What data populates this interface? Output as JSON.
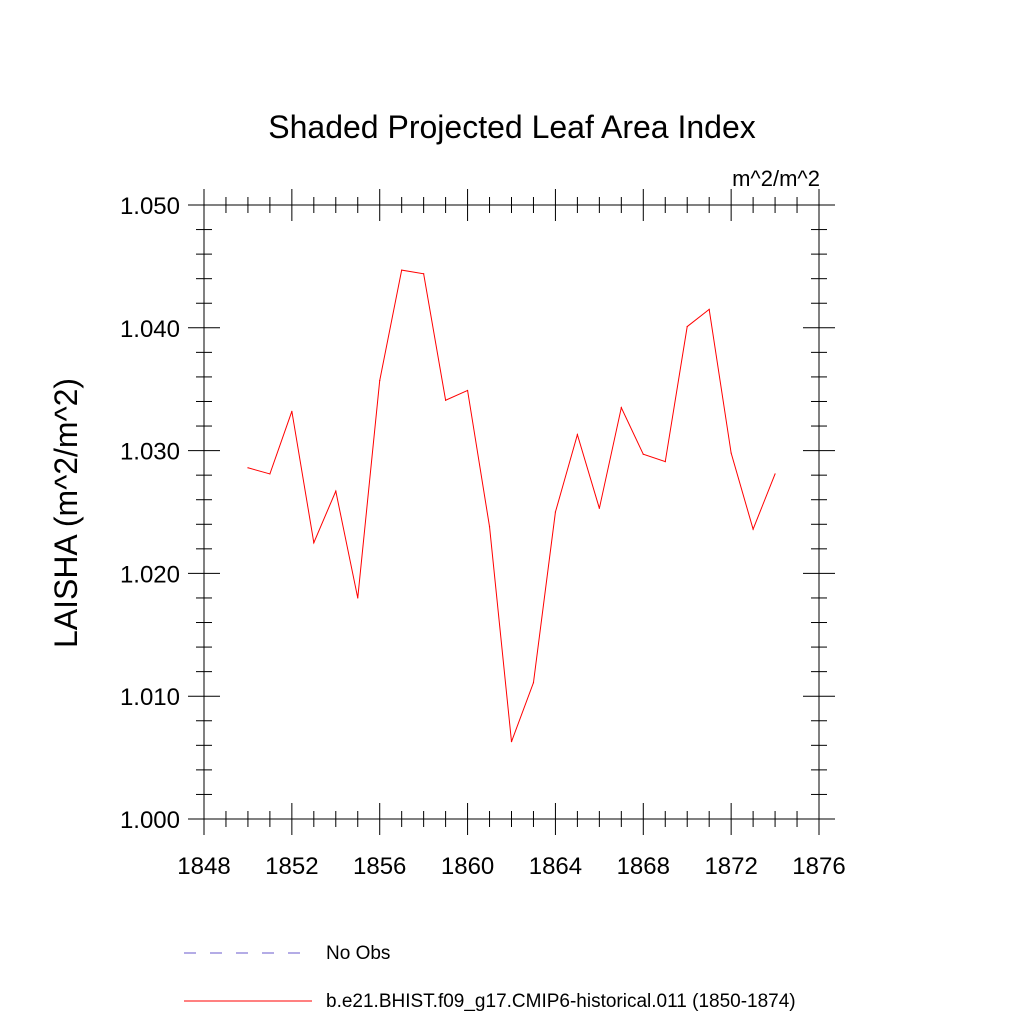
{
  "chart_data": {
    "type": "line",
    "title": "Shaded Projected Leaf Area Index",
    "units": "m^2/m^2",
    "xlabel": "",
    "ylabel": "LAISHA  (m^2/m^2)",
    "xlim": [
      1848,
      1876
    ],
    "ylim": [
      1.0,
      1.05
    ],
    "x_ticks": [
      {
        "value": 1848,
        "label": "1848"
      },
      {
        "value": 1852,
        "label": "1852"
      },
      {
        "value": 1856,
        "label": "1856"
      },
      {
        "value": 1860,
        "label": "1860"
      },
      {
        "value": 1864,
        "label": "1864"
      },
      {
        "value": 1868,
        "label": "1868"
      },
      {
        "value": 1872,
        "label": "1872"
      },
      {
        "value": 1876,
        "label": "1876"
      }
    ],
    "y_ticks": [
      {
        "value": 1.0,
        "label": "1.000"
      },
      {
        "value": 1.01,
        "label": "1.010"
      },
      {
        "value": 1.02,
        "label": "1.020"
      },
      {
        "value": 1.03,
        "label": "1.030"
      },
      {
        "value": 1.04,
        "label": "1.040"
      },
      {
        "value": 1.05,
        "label": "1.050"
      }
    ],
    "grid": false,
    "legend_position": "bottom",
    "series": [
      {
        "name": "b.e21.BHIST.f09_g17.CMIP6-historical.011 (1850-1874)",
        "color": "#ff0000",
        "style": "solid",
        "x": [
          1850,
          1851,
          1852,
          1853,
          1854,
          1855,
          1856,
          1857,
          1858,
          1859,
          1860,
          1861,
          1862,
          1863,
          1864,
          1865,
          1866,
          1867,
          1868,
          1869,
          1870,
          1871,
          1872,
          1873,
          1874
        ],
        "y": [
          1.0286,
          1.0281,
          1.0332,
          1.0225,
          1.0267,
          1.018,
          1.0357,
          1.0447,
          1.0444,
          1.0341,
          1.0349,
          1.0238,
          1.0063,
          1.0111,
          1.025,
          1.0313,
          1.0253,
          1.0335,
          1.0297,
          1.0291,
          1.0401,
          1.0415,
          1.0298,
          1.0236,
          1.0281
        ]
      }
    ],
    "legend": [
      {
        "label": "No Obs",
        "color": "#6a5acd",
        "style": "dashed"
      },
      {
        "label": "b.e21.BHIST.f09_g17.CMIP6-historical.011 (1850-1874)",
        "color": "#ff0000",
        "style": "solid"
      }
    ]
  }
}
